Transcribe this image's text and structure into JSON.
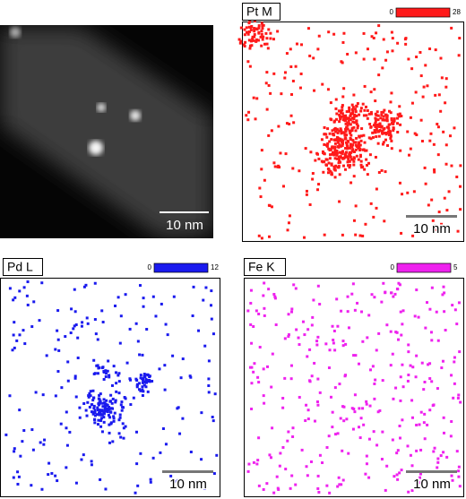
{
  "panels": [
    {
      "scale_bar": "10 nm"
    },
    {
      "label": "Pt M",
      "colorbar_min": 0,
      "colorbar_max": 28,
      "scale_bar": "10 nm"
    },
    {
      "label": "Pd L",
      "colorbar_min": 0,
      "colorbar_max": 12,
      "scale_bar": "10 nm"
    },
    {
      "label": "Fe K",
      "colorbar_min": 0,
      "colorbar_max": 5,
      "scale_bar": "10 nm"
    }
  ]
}
